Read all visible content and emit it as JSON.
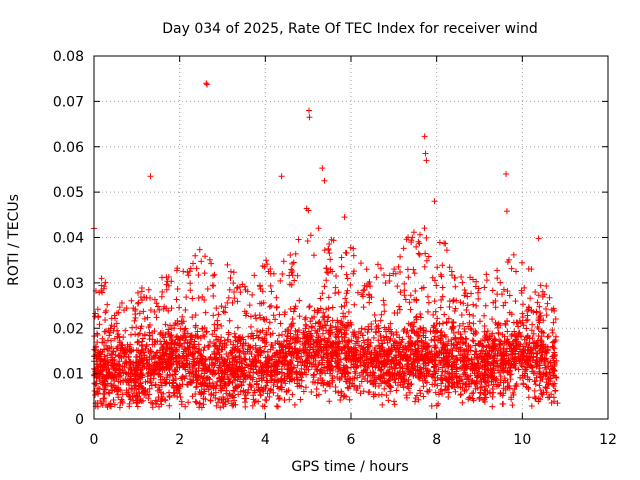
{
  "chart_data": {
    "type": "scatter",
    "title": "Day 034 of 2025, Rate Of TEC Index for receiver wind",
    "xlabel": "GPS time / hours",
    "ylabel": "ROTI / TECUs",
    "xlim": [
      0,
      12
    ],
    "ylim": [
      0,
      0.08
    ],
    "xticks": [
      "0",
      "2",
      "4",
      "6",
      "8",
      "10",
      "12"
    ],
    "yticks": [
      "0",
      "0.01",
      "0.02",
      "0.03",
      "0.04",
      "0.05",
      "0.06",
      "0.07",
      "0.08"
    ],
    "grid": true,
    "marker": "+",
    "color": "#ff0000",
    "data_x_range": [
      0,
      10.8
    ],
    "outliers": [
      {
        "x": 0.0,
        "y": 0.042
      },
      {
        "x": 1.32,
        "y": 0.0535
      },
      {
        "x": 2.62,
        "y": 0.074
      },
      {
        "x": 2.64,
        "y": 0.0737
      },
      {
        "x": 4.38,
        "y": 0.0535
      },
      {
        "x": 5.02,
        "y": 0.068
      },
      {
        "x": 5.03,
        "y": 0.0665
      },
      {
        "x": 5.33,
        "y": 0.0553
      },
      {
        "x": 5.38,
        "y": 0.0525
      },
      {
        "x": 5.85,
        "y": 0.0445
      },
      {
        "x": 7.72,
        "y": 0.0623
      },
      {
        "x": 7.74,
        "y": 0.0585
      },
      {
        "x": 7.76,
        "y": 0.057
      },
      {
        "x": 7.95,
        "y": 0.048
      },
      {
        "x": 9.62,
        "y": 0.054
      },
      {
        "x": 9.64,
        "y": 0.0458
      },
      {
        "x": 10.38,
        "y": 0.0398
      },
      {
        "x": 10.82,
        "y": 0.0035
      }
    ],
    "envelope": [
      {
        "x": 0.0,
        "base": 0.01,
        "peak": 0.036
      },
      {
        "x": 0.5,
        "base": 0.009,
        "peak": 0.025
      },
      {
        "x": 1.0,
        "base": 0.01,
        "peak": 0.028
      },
      {
        "x": 1.5,
        "base": 0.011,
        "peak": 0.032
      },
      {
        "x": 2.0,
        "base": 0.012,
        "peak": 0.034
      },
      {
        "x": 2.5,
        "base": 0.011,
        "peak": 0.04
      },
      {
        "x": 3.0,
        "base": 0.01,
        "peak": 0.036
      },
      {
        "x": 3.5,
        "base": 0.011,
        "peak": 0.03
      },
      {
        "x": 4.0,
        "base": 0.011,
        "peak": 0.035
      },
      {
        "x": 4.5,
        "base": 0.012,
        "peak": 0.036
      },
      {
        "x": 5.0,
        "base": 0.014,
        "peak": 0.048
      },
      {
        "x": 5.5,
        "base": 0.014,
        "peak": 0.04
      },
      {
        "x": 6.0,
        "base": 0.013,
        "peak": 0.038
      },
      {
        "x": 6.5,
        "base": 0.012,
        "peak": 0.035
      },
      {
        "x": 7.0,
        "base": 0.012,
        "peak": 0.037
      },
      {
        "x": 7.5,
        "base": 0.013,
        "peak": 0.042
      },
      {
        "x": 8.0,
        "base": 0.013,
        "peak": 0.044
      },
      {
        "x": 8.5,
        "base": 0.011,
        "peak": 0.034
      },
      {
        "x": 9.0,
        "base": 0.011,
        "peak": 0.03
      },
      {
        "x": 9.5,
        "base": 0.012,
        "peak": 0.038
      },
      {
        "x": 10.0,
        "base": 0.013,
        "peak": 0.035
      },
      {
        "x": 10.5,
        "base": 0.012,
        "peak": 0.032
      },
      {
        "x": 10.8,
        "base": 0.01,
        "peak": 0.024
      }
    ]
  }
}
